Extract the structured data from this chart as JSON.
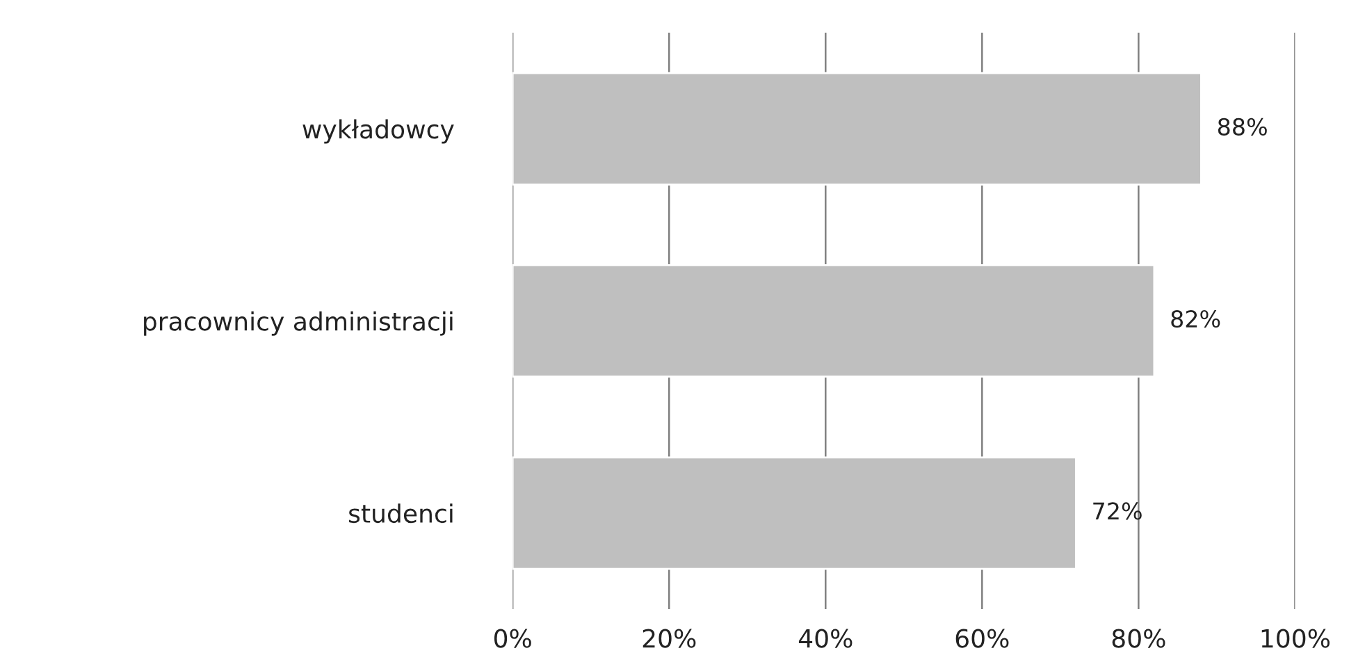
{
  "chart_data": {
    "type": "bar",
    "orientation": "horizontal",
    "categories": [
      "wykładowcy",
      "pracownicy administracji",
      "studenci"
    ],
    "values": [
      88,
      82,
      72
    ],
    "value_labels": [
      "88%",
      "82%",
      "72%"
    ],
    "color": "#bfbfbf",
    "xlim": [
      0,
      100
    ],
    "xticks": [
      {
        "value": 0,
        "label": "0%"
      },
      {
        "value": 20,
        "label": "20%"
      },
      {
        "value": 40,
        "label": "40%"
      },
      {
        "value": 60,
        "label": "60%"
      },
      {
        "value": 80,
        "label": "80%"
      },
      {
        "value": 100,
        "label": "100%"
      }
    ],
    "grid": "x"
  }
}
